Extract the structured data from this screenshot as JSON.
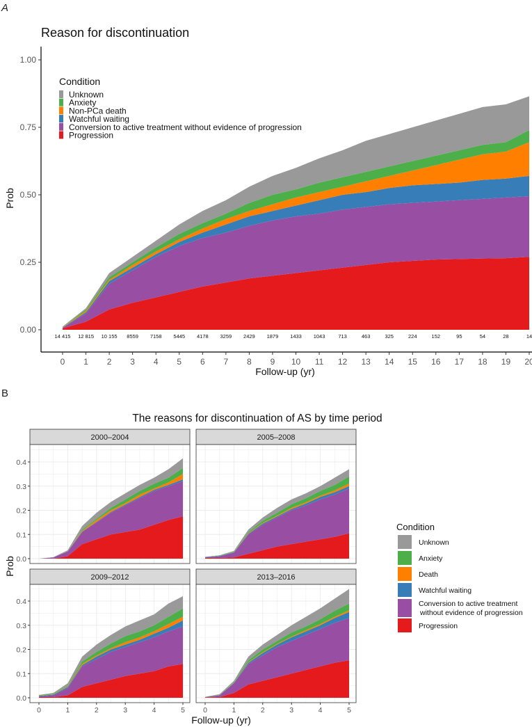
{
  "panel_labels": {
    "a": "A",
    "b": "B"
  },
  "colors": {
    "Unknown": "#999999",
    "Anxiety": "#4DAF4A",
    "Death": "#FF7F00",
    "Watchful": "#377EB8",
    "Conversion": "#984EA3",
    "Progression": "#E41A1C"
  },
  "chart_data": [
    {
      "type": "area",
      "title": "Reason for discontinuation",
      "xlabel": "Follow-up (yr)",
      "ylabel": "Prob",
      "xlim": [
        0,
        20
      ],
      "ylim": [
        0,
        1
      ],
      "x_ticks": [
        "0",
        "1",
        "2",
        "3",
        "4",
        "5",
        "6",
        "7",
        "8",
        "9",
        "10",
        "11",
        "12",
        "13",
        "14",
        "15",
        "16",
        "17",
        "18",
        "19",
        "20"
      ],
      "y_ticks": [
        "0.00",
        "0.25",
        "0.50",
        "0.75",
        "1.00"
      ],
      "grid": false,
      "stacked_cumulative": true,
      "x": [
        0,
        1,
        2,
        3,
        4,
        5,
        6,
        7,
        8,
        9,
        10,
        11,
        12,
        13,
        14,
        15,
        16,
        17,
        18,
        19,
        20
      ],
      "at_risk": [
        "14 415",
        "12 815",
        "10 155",
        "8559",
        "7158",
        "5445",
        "4178",
        "3259",
        "2429",
        "1879",
        "1433",
        "1043",
        "713",
        "463",
        "325",
        "224",
        "152",
        "95",
        "54",
        "28",
        "14"
      ],
      "legend": {
        "title": "Condition",
        "position": "top-left",
        "items": [
          "Unknown",
          "Anxiety",
          "Non-PCa death",
          "Watchful waiting",
          "Conversion to active treatment without evidence of progression",
          "Progression"
        ]
      },
      "series": [
        {
          "name": "Progression",
          "color": "#E41A1C",
          "cumulative": [
            0.005,
            0.03,
            0.075,
            0.1,
            0.12,
            0.14,
            0.16,
            0.175,
            0.19,
            0.2,
            0.21,
            0.22,
            0.23,
            0.24,
            0.25,
            0.255,
            0.26,
            0.262,
            0.264,
            0.265,
            0.27
          ]
        },
        {
          "name": "Conversion to active treatment without evidence of progression",
          "color": "#984EA3",
          "cumulative": [
            0.007,
            0.06,
            0.17,
            0.22,
            0.27,
            0.31,
            0.34,
            0.36,
            0.385,
            0.405,
            0.42,
            0.43,
            0.445,
            0.455,
            0.465,
            0.47,
            0.475,
            0.48,
            0.485,
            0.49,
            0.495
          ]
        },
        {
          "name": "Watchful waiting",
          "color": "#377EB8",
          "cumulative": [
            0.008,
            0.065,
            0.18,
            0.23,
            0.28,
            0.325,
            0.36,
            0.39,
            0.42,
            0.44,
            0.46,
            0.48,
            0.5,
            0.51,
            0.525,
            0.535,
            0.54,
            0.545,
            0.555,
            0.56,
            0.57
          ]
        },
        {
          "name": "Non-PCa death",
          "color": "#FF7F00",
          "cumulative": [
            0.009,
            0.07,
            0.185,
            0.24,
            0.29,
            0.335,
            0.375,
            0.41,
            0.44,
            0.465,
            0.49,
            0.51,
            0.53,
            0.55,
            0.57,
            0.59,
            0.61,
            0.63,
            0.65,
            0.66,
            0.695
          ]
        },
        {
          "name": "Anxiety",
          "color": "#4DAF4A",
          "cumulative": [
            0.01,
            0.075,
            0.195,
            0.25,
            0.305,
            0.355,
            0.395,
            0.43,
            0.47,
            0.5,
            0.52,
            0.545,
            0.565,
            0.585,
            0.605,
            0.625,
            0.645,
            0.665,
            0.685,
            0.695,
            0.74
          ]
        },
        {
          "name": "Unknown",
          "color": "#999999",
          "cumulative": [
            0.012,
            0.08,
            0.21,
            0.27,
            0.33,
            0.39,
            0.44,
            0.48,
            0.53,
            0.57,
            0.6,
            0.635,
            0.665,
            0.7,
            0.725,
            0.75,
            0.775,
            0.8,
            0.825,
            0.835,
            0.865
          ]
        }
      ]
    },
    {
      "type": "area",
      "title": "The reasons for discontinuation of AS by time period",
      "xlabel": "Follow-up (yr)",
      "ylabel": "Prob",
      "xlim": [
        0,
        5
      ],
      "ylim": [
        0,
        0.45
      ],
      "x_ticks": [
        "0",
        "1",
        "2",
        "3",
        "4",
        "5"
      ],
      "y_ticks": [
        "0.0",
        "0.1",
        "0.2",
        "0.3",
        "0.4"
      ],
      "grid": true,
      "stacked_cumulative": true,
      "legend": {
        "title": "Condition",
        "position": "right",
        "items": [
          "Unknown",
          "Anxiety",
          "Death",
          "Watchful waiting",
          "Conversion to active treatment",
          "without evidence of progression",
          "Progression"
        ]
      },
      "x": [
        0,
        0.5,
        1,
        1.5,
        2,
        2.5,
        3,
        3.5,
        4,
        4.5,
        5
      ],
      "series_names": [
        "Progression",
        "Conversion to active treatment without evidence of progression",
        "Watchful waiting",
        "Death",
        "Anxiety",
        "Unknown"
      ],
      "series_colors": [
        "#E41A1C",
        "#984EA3",
        "#377EB8",
        "#FF7F00",
        "#4DAF4A",
        "#999999"
      ],
      "facets": [
        {
          "label": "2000–2004",
          "cumulative": [
            [
              0,
              0,
              0.01,
              0.06,
              0.08,
              0.1,
              0.11,
              0.12,
              0.14,
              0.16,
              0.175
            ],
            [
              0,
              0.005,
              0.03,
              0.11,
              0.15,
              0.19,
              0.22,
              0.25,
              0.28,
              0.3,
              0.32
            ],
            [
              0,
              0.005,
              0.03,
              0.112,
              0.152,
              0.193,
              0.224,
              0.255,
              0.285,
              0.305,
              0.328
            ],
            [
              0,
              0.005,
              0.03,
              0.115,
              0.16,
              0.2,
              0.23,
              0.265,
              0.29,
              0.315,
              0.35
            ],
            [
              0,
              0.005,
              0.03,
              0.12,
              0.165,
              0.21,
              0.245,
              0.28,
              0.31,
              0.335,
              0.375
            ],
            [
              0,
              0.006,
              0.035,
              0.135,
              0.19,
              0.235,
              0.27,
              0.305,
              0.335,
              0.37,
              0.415
            ]
          ]
        },
        {
          "label": "2005–2008",
          "cumulative": [
            [
              0.003,
              0.003,
              0.005,
              0.02,
              0.035,
              0.05,
              0.06,
              0.07,
              0.08,
              0.09,
              0.105
            ],
            [
              0.005,
              0.01,
              0.025,
              0.1,
              0.14,
              0.17,
              0.2,
              0.22,
              0.245,
              0.265,
              0.29
            ],
            [
              0.006,
              0.011,
              0.027,
              0.103,
              0.145,
              0.175,
              0.205,
              0.228,
              0.255,
              0.275,
              0.3
            ],
            [
              0.006,
              0.011,
              0.028,
              0.105,
              0.148,
              0.178,
              0.21,
              0.233,
              0.26,
              0.282,
              0.31
            ],
            [
              0.007,
              0.013,
              0.03,
              0.11,
              0.157,
              0.19,
              0.225,
              0.25,
              0.28,
              0.305,
              0.34
            ],
            [
              0.008,
              0.014,
              0.032,
              0.12,
              0.17,
              0.21,
              0.245,
              0.27,
              0.3,
              0.335,
              0.37
            ]
          ]
        },
        {
          "label": "2009–2012",
          "cumulative": [
            [
              0.003,
              0.003,
              0.01,
              0.045,
              0.06,
              0.075,
              0.09,
              0.1,
              0.11,
              0.13,
              0.14
            ],
            [
              0.005,
              0.01,
              0.04,
              0.13,
              0.16,
              0.19,
              0.21,
              0.23,
              0.25,
              0.275,
              0.295
            ],
            [
              0.008,
              0.013,
              0.045,
              0.135,
              0.17,
              0.2,
              0.22,
              0.24,
              0.265,
              0.29,
              0.32
            ],
            [
              0.009,
              0.014,
              0.047,
              0.14,
              0.175,
              0.205,
              0.23,
              0.25,
              0.275,
              0.305,
              0.335
            ],
            [
              0.011,
              0.017,
              0.05,
              0.15,
              0.19,
              0.225,
              0.255,
              0.275,
              0.3,
              0.335,
              0.37
            ],
            [
              0.012,
              0.02,
              0.06,
              0.17,
              0.22,
              0.26,
              0.295,
              0.32,
              0.345,
              0.39,
              0.42
            ]
          ]
        },
        {
          "label": "2013–2016",
          "cumulative": [
            [
              0.002,
              0.003,
              0.02,
              0.055,
              0.07,
              0.085,
              0.1,
              0.115,
              0.13,
              0.145,
              0.155
            ],
            [
              0.003,
              0.01,
              0.06,
              0.14,
              0.175,
              0.21,
              0.235,
              0.26,
              0.285,
              0.31,
              0.33
            ],
            [
              0.003,
              0.011,
              0.062,
              0.145,
              0.185,
              0.22,
              0.25,
              0.275,
              0.3,
              0.33,
              0.355
            ],
            [
              0.003,
              0.012,
              0.063,
              0.147,
              0.188,
              0.223,
              0.253,
              0.28,
              0.305,
              0.335,
              0.362
            ],
            [
              0.004,
              0.013,
              0.066,
              0.155,
              0.2,
              0.235,
              0.27,
              0.295,
              0.325,
              0.36,
              0.39
            ],
            [
              0.004,
              0.015,
              0.07,
              0.17,
              0.22,
              0.26,
              0.3,
              0.335,
              0.37,
              0.41,
              0.45
            ]
          ]
        }
      ]
    }
  ]
}
